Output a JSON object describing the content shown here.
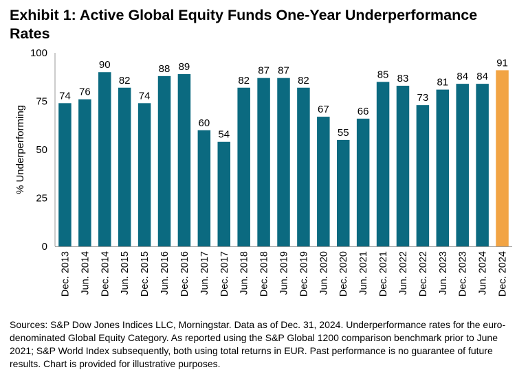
{
  "chart_data": {
    "type": "bar",
    "title": "Exhibit 1: Active Global Equity Funds One-Year Underperformance Rates",
    "ylabel": "% Underperforming",
    "xlabel": "",
    "ylim": [
      0,
      100
    ],
    "yticks": [
      0,
      25,
      50,
      75,
      100
    ],
    "grid": false,
    "categories": [
      "Dec. 2013",
      "Jun. 2014",
      "Dec. 2014",
      "Jun. 2015",
      "Dec. 2015",
      "Jun. 2016",
      "Dec. 2016",
      "Jun. 2017",
      "Dec. 2017",
      "Jun. 2018",
      "Dec. 2018",
      "Jun. 2019",
      "Dec. 2019",
      "Jun. 2020",
      "Dec. 2020",
      "Jun. 2021",
      "Dec. 2021",
      "Jun. 2022",
      "Dec. 2022",
      "Jun. 2023",
      "Dec. 2023",
      "Jun. 2024",
      "Dec. 2024"
    ],
    "values": [
      74,
      76,
      90,
      82,
      74,
      88,
      89,
      60,
      54,
      82,
      87,
      87,
      82,
      67,
      55,
      66,
      85,
      83,
      73,
      81,
      84,
      84,
      91
    ],
    "data_labels": [
      "74",
      "76",
      "90",
      "82",
      "74",
      "88",
      "89",
      "60",
      "54",
      "82",
      "87",
      "87",
      "82",
      "67",
      "55",
      "66",
      "85",
      "83",
      "73",
      "81",
      "84",
      "84",
      "91"
    ],
    "colors": {
      "default": "#0B6A80",
      "highlight": "#F2A444",
      "axis": "#9A9A9A"
    },
    "highlight_index": 22
  },
  "footnote": "Sources: S&P Dow Jones Indices LLC, Morningstar.  Data as of Dec. 31, 2024.  Underperformance rates for the euro-denominated Global Equity Category.  As reported using the S&P Global 1200 comparison benchmark prior to June 2021; S&P World Index subsequently, both using total returns in EUR.  Past performance is no guarantee of future results.  Chart is provided for illustrative purposes."
}
